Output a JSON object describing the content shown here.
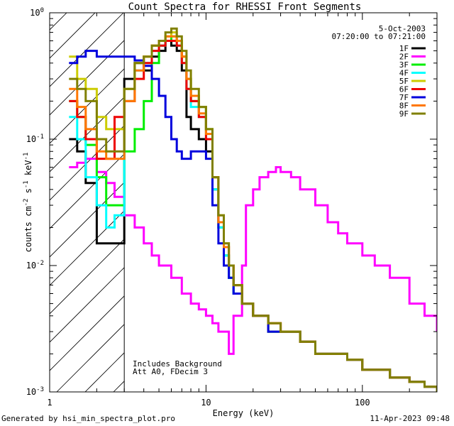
{
  "chart_data": {
    "type": "line",
    "title": "Count Spectra for RHESSI Front Segments",
    "xlabel": "Energy (keV)",
    "ylabel": "counts cm^-2 s^-1 keV^-1",
    "xscale": "log",
    "yscale": "log",
    "xlim": [
      1,
      300
    ],
    "ylim": [
      0.001,
      1
    ],
    "x_ticks": [
      "1",
      "10",
      "100"
    ],
    "y_ticks": [
      "10^-3",
      "10^-2",
      "10^-1",
      "10^0"
    ],
    "grid": false,
    "legend_position": "top-right",
    "date": "5-Oct-2003",
    "time_range": "07:20:00 to 07:21:00",
    "annotations": [
      "Includes Background",
      "Att A0, FDecim 3"
    ],
    "shaded_region_keV": [
      1,
      3
    ],
    "series": [
      {
        "name": "1F",
        "color": "#000000",
        "x": [
          1.33,
          1.5,
          1.7,
          2.0,
          2.3,
          2.6,
          3.0,
          3.5,
          4.0,
          4.5,
          5.0,
          5.5,
          6.0,
          6.5,
          7.0,
          7.5,
          8.0,
          9.0,
          10,
          11,
          12,
          13,
          14,
          15,
          17,
          20,
          25,
          30,
          40,
          50,
          60,
          80,
          100,
          150,
          200,
          250,
          300
        ],
        "y": [
          0.1,
          0.08,
          0.045,
          0.015,
          0.015,
          0.015,
          0.3,
          0.4,
          0.35,
          0.45,
          0.5,
          0.6,
          0.55,
          0.5,
          0.35,
          0.15,
          0.12,
          0.1,
          0.08,
          0.04,
          0.02,
          0.012,
          0.008,
          0.006,
          0.005,
          0.004,
          0.003,
          0.003,
          0.0025,
          0.002,
          0.002,
          0.0018,
          0.0015,
          0.0013,
          0.0012,
          0.0011,
          0.001
        ]
      },
      {
        "name": "2F",
        "color": "#ff00ff",
        "x": [
          1.33,
          1.5,
          1.7,
          2.0,
          2.3,
          2.6,
          3.0,
          3.5,
          4.0,
          4.5,
          5.0,
          6.0,
          7.0,
          8.0,
          9.0,
          10,
          11,
          12,
          13,
          14,
          15,
          17,
          18,
          20,
          22,
          25,
          28,
          30,
          35,
          40,
          50,
          60,
          70,
          80,
          100,
          120,
          150,
          200,
          250,
          300
        ],
        "y": [
          0.06,
          0.065,
          0.07,
          0.055,
          0.045,
          0.035,
          0.025,
          0.02,
          0.015,
          0.012,
          0.01,
          0.008,
          0.006,
          0.005,
          0.0045,
          0.004,
          0.0035,
          0.003,
          0.003,
          0.002,
          0.004,
          0.01,
          0.03,
          0.04,
          0.05,
          0.055,
          0.06,
          0.055,
          0.05,
          0.04,
          0.03,
          0.022,
          0.018,
          0.015,
          0.012,
          0.01,
          0.008,
          0.005,
          0.004,
          0.003
        ]
      },
      {
        "name": "3F",
        "color": "#00ee00",
        "x": [
          1.33,
          1.5,
          1.7,
          2.0,
          2.3,
          2.6,
          3.0,
          3.5,
          4.0,
          4.5,
          5.0,
          5.5,
          6.0,
          6.5,
          7.0,
          7.5,
          8.0,
          9.0,
          10,
          11,
          12,
          13,
          14,
          15,
          17,
          20,
          25,
          30,
          40,
          50,
          60,
          80,
          100,
          150,
          200,
          250,
          300
        ],
        "y": [
          0.2,
          0.15,
          0.09,
          0.05,
          0.03,
          0.03,
          0.08,
          0.12,
          0.2,
          0.4,
          0.55,
          0.6,
          0.65,
          0.6,
          0.45,
          0.3,
          0.2,
          0.18,
          0.12,
          0.05,
          0.02,
          0.012,
          0.008,
          0.006,
          0.005,
          0.004,
          0.003,
          0.003,
          0.0025,
          0.002,
          0.002,
          0.0018,
          0.0015,
          0.0013,
          0.0012,
          0.0011,
          0.001
        ]
      },
      {
        "name": "4F",
        "color": "#00ffff",
        "x": [
          1.33,
          1.5,
          1.7,
          2.0,
          2.3,
          2.6,
          3.0,
          3.5,
          4.0,
          4.5,
          5.0,
          5.5,
          6.0,
          6.5,
          7.0,
          7.5,
          8.0,
          9.0,
          10,
          11,
          12,
          13,
          14,
          15,
          17,
          20,
          25,
          30,
          40,
          50,
          60,
          80,
          100,
          150,
          200,
          250,
          300
        ],
        "y": [
          0.15,
          0.1,
          0.05,
          0.03,
          0.02,
          0.025,
          0.2,
          0.35,
          0.4,
          0.5,
          0.55,
          0.6,
          0.6,
          0.55,
          0.4,
          0.25,
          0.18,
          0.15,
          0.1,
          0.04,
          0.02,
          0.012,
          0.008,
          0.006,
          0.005,
          0.004,
          0.003,
          0.003,
          0.0025,
          0.002,
          0.002,
          0.0018,
          0.0015,
          0.0013,
          0.0012,
          0.0011,
          0.001
        ]
      },
      {
        "name": "5F",
        "color": "#cccc00",
        "x": [
          1.33,
          1.5,
          1.7,
          2.0,
          2.3,
          2.6,
          3.0,
          3.5,
          4.0,
          4.5,
          5.0,
          5.5,
          6.0,
          6.5,
          7.0,
          7.5,
          8.0,
          9.0,
          10,
          11,
          12,
          13,
          14,
          15,
          17,
          20,
          25,
          30,
          40,
          50,
          60,
          80,
          100,
          150,
          200,
          250,
          300
        ],
        "y": [
          0.45,
          0.3,
          0.25,
          0.15,
          0.12,
          0.12,
          0.25,
          0.4,
          0.45,
          0.55,
          0.6,
          0.65,
          0.7,
          0.6,
          0.45,
          0.3,
          0.22,
          0.18,
          0.12,
          0.05,
          0.025,
          0.015,
          0.01,
          0.007,
          0.005,
          0.004,
          0.003,
          0.003,
          0.0025,
          0.002,
          0.002,
          0.0018,
          0.0015,
          0.0013,
          0.0012,
          0.0011,
          0.001
        ]
      },
      {
        "name": "6F",
        "color": "#ee0000",
        "x": [
          1.33,
          1.5,
          1.7,
          2.0,
          2.3,
          2.6,
          3.0,
          3.5,
          4.0,
          4.5,
          5.0,
          5.5,
          6.0,
          6.5,
          7.0,
          7.5,
          8.0,
          9.0,
          10,
          11,
          12,
          13,
          14,
          15,
          17,
          20,
          25,
          30,
          40,
          50,
          60,
          80,
          100,
          150,
          200,
          250,
          300
        ],
        "y": [
          0.2,
          0.15,
          0.1,
          0.07,
          0.07,
          0.15,
          0.2,
          0.3,
          0.4,
          0.5,
          0.55,
          0.6,
          0.6,
          0.55,
          0.4,
          0.25,
          0.2,
          0.15,
          0.1,
          0.05,
          0.022,
          0.014,
          0.01,
          0.007,
          0.005,
          0.004,
          0.0035,
          0.003,
          0.0025,
          0.002,
          0.002,
          0.0018,
          0.0015,
          0.0013,
          0.0012,
          0.0011,
          0.001
        ]
      },
      {
        "name": "7F",
        "color": "#0000dd",
        "x": [
          1.33,
          1.5,
          1.7,
          2.0,
          2.3,
          2.6,
          3.0,
          3.5,
          4.0,
          4.5,
          5.0,
          5.5,
          6.0,
          6.5,
          7.0,
          7.5,
          8.0,
          9.0,
          10,
          11,
          12,
          13,
          14,
          15,
          17,
          20,
          25,
          30,
          40,
          50,
          60,
          80,
          100,
          150,
          200,
          250,
          300
        ],
        "y": [
          0.4,
          0.45,
          0.5,
          0.45,
          0.45,
          0.45,
          0.45,
          0.42,
          0.38,
          0.3,
          0.22,
          0.15,
          0.1,
          0.08,
          0.07,
          0.07,
          0.08,
          0.08,
          0.07,
          0.03,
          0.015,
          0.01,
          0.008,
          0.006,
          0.005,
          0.004,
          0.003,
          0.003,
          0.0025,
          0.002,
          0.002,
          0.0018,
          0.0015,
          0.0013,
          0.0012,
          0.0011,
          0.001
        ]
      },
      {
        "name": "8F",
        "color": "#ff7700",
        "x": [
          1.33,
          1.5,
          1.7,
          2.0,
          2.3,
          2.6,
          3.0,
          3.5,
          4.0,
          4.5,
          5.0,
          5.5,
          6.0,
          6.5,
          7.0,
          7.5,
          8.0,
          9.0,
          10,
          11,
          12,
          13,
          14,
          15,
          17,
          20,
          25,
          30,
          40,
          50,
          60,
          80,
          100,
          150,
          200,
          250,
          300
        ],
        "y": [
          0.25,
          0.18,
          0.12,
          0.08,
          0.07,
          0.07,
          0.2,
          0.35,
          0.45,
          0.55,
          0.6,
          0.65,
          0.65,
          0.6,
          0.45,
          0.3,
          0.22,
          0.16,
          0.11,
          0.05,
          0.022,
          0.014,
          0.01,
          0.007,
          0.005,
          0.004,
          0.0035,
          0.003,
          0.0025,
          0.002,
          0.002,
          0.0018,
          0.0015,
          0.0013,
          0.0012,
          0.0011,
          0.001
        ]
      },
      {
        "name": "9F",
        "color": "#808000",
        "x": [
          1.33,
          1.5,
          1.7,
          2.0,
          2.3,
          2.6,
          3.0,
          3.5,
          4.0,
          4.5,
          5.0,
          5.5,
          6.0,
          6.5,
          7.0,
          7.5,
          8.0,
          9.0,
          10,
          11,
          12,
          13,
          14,
          15,
          17,
          20,
          25,
          30,
          40,
          50,
          60,
          80,
          100,
          150,
          200,
          250,
          300
        ],
        "y": [
          0.3,
          0.25,
          0.2,
          0.1,
          0.08,
          0.08,
          0.25,
          0.4,
          0.45,
          0.55,
          0.6,
          0.7,
          0.75,
          0.65,
          0.5,
          0.35,
          0.25,
          0.18,
          0.12,
          0.05,
          0.025,
          0.015,
          0.01,
          0.007,
          0.005,
          0.004,
          0.0035,
          0.003,
          0.0025,
          0.002,
          0.002,
          0.0018,
          0.0015,
          0.0013,
          0.0012,
          0.0011,
          0.001
        ]
      }
    ]
  },
  "footer": {
    "left": "Generated by hsi_min_spectra_plot.pro",
    "right": "11-Apr-2023 09:48"
  }
}
